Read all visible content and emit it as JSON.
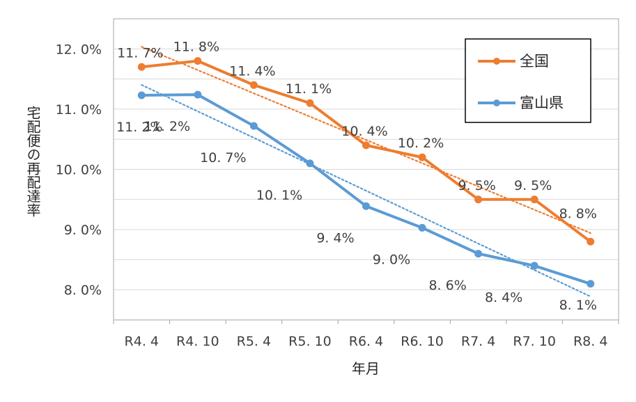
{
  "chart_data": {
    "type": "line",
    "xlabel": "年月",
    "ylabel": "宅配便の再配達率",
    "categories": [
      "R4.4",
      "R4.10",
      "R5.4",
      "R5.10",
      "R6.4",
      "R6.10",
      "R7.4",
      "R7.10",
      "R8.4"
    ],
    "category_labels": [
      "R4. 4",
      "R4. 10",
      "R5. 4",
      "R5. 10",
      "R6. 4",
      "R6. 10",
      "R7. 4",
      "R7. 10",
      "R8. 4"
    ],
    "ylim": [
      7.5,
      12.5
    ],
    "yticks": [
      8.0,
      9.0,
      10.0,
      11.0,
      12.0
    ],
    "ytick_labels": [
      "8. 0%",
      "9. 0%",
      "10. 0%",
      "11. 0%",
      "12. 0%"
    ],
    "grid": true,
    "legend_position": "top-right",
    "trendline": "linear, dotted",
    "series": [
      {
        "name": "全国",
        "color": "#ED7D31",
        "values": [
          11.7,
          11.8,
          11.4,
          11.1,
          10.4,
          10.2,
          9.5,
          9.5,
          8.8
        ],
        "labels": [
          "11. 7%",
          "11. 8%",
          "11. 4%",
          "11. 1%",
          "10. 4%",
          "10. 2%",
          "9. 5%",
          "9. 5%",
          "8. 8%"
        ]
      },
      {
        "name": "富山県",
        "color": "#5B9BD5",
        "values": [
          11.23,
          11.24,
          10.72,
          10.1,
          9.39,
          9.03,
          8.6,
          8.4,
          8.1
        ],
        "labels": [
          "11. 2%",
          "11. 2%",
          "10. 7%",
          "10. 1%",
          "9. 4%",
          "9. 0%",
          "8. 6%",
          "8. 4%",
          "8. 1%"
        ]
      }
    ]
  }
}
